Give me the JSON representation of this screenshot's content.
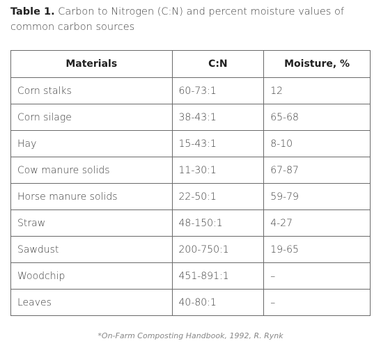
{
  "caption": {
    "label": "Table 1.",
    "text": "Carbon to Nitrogen (C:N) and percent moisture values of common carbon sources"
  },
  "table": {
    "headers": [
      "Materials",
      "C:N",
      "Moisture, %"
    ],
    "rows": [
      [
        "Corn stalks",
        "60-73:1",
        "12"
      ],
      [
        "Corn silage",
        "38-43:1",
        "65-68"
      ],
      [
        "Hay",
        "15-43:1",
        "8-10"
      ],
      [
        "Cow manure solids",
        "11-30:1",
        "67-87"
      ],
      [
        "Horse manure solids",
        "22-50:1",
        "59-79"
      ],
      [
        "Straw",
        "48-150:1",
        "4-27"
      ],
      [
        "Sawdust",
        "200-750:1",
        "19-65"
      ],
      [
        "Woodchip",
        "451-891:1",
        "–"
      ],
      [
        "Leaves",
        "40-80:1",
        "–"
      ]
    ]
  },
  "footnote": "*On-Farm Composting Handbook, 1992, R. Rynk"
}
